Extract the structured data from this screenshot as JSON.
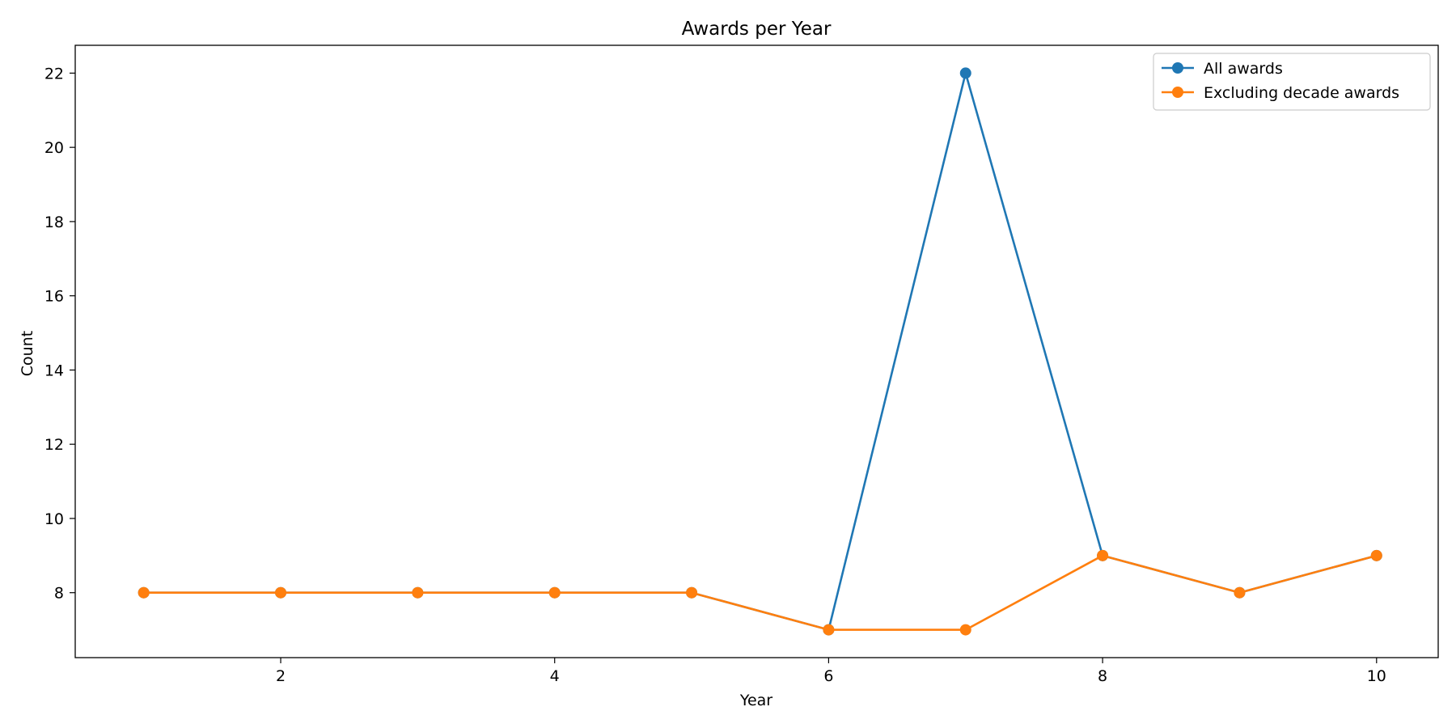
{
  "chart_data": {
    "type": "line",
    "title": "Awards per Year",
    "xlabel": "Year",
    "ylabel": "Count",
    "x": [
      1,
      2,
      3,
      4,
      5,
      6,
      7,
      8,
      9,
      10
    ],
    "xlim": [
      0.5,
      10.45
    ],
    "ylim": [
      6.25,
      22.75
    ],
    "xticks": [
      2,
      4,
      6,
      8,
      10
    ],
    "yticks": [
      8,
      10,
      12,
      14,
      16,
      18,
      20,
      22
    ],
    "grid": false,
    "legend_position": "top-right",
    "series": [
      {
        "name": "All awards",
        "color": "#1f77b4",
        "marker": "circle",
        "values": [
          8,
          8,
          8,
          8,
          8,
          7,
          22,
          9,
          8,
          9
        ]
      },
      {
        "name": "Excluding decade awards",
        "color": "#ff7f0e",
        "marker": "circle",
        "values": [
          8,
          8,
          8,
          8,
          8,
          7,
          7,
          9,
          8,
          9
        ]
      }
    ]
  }
}
